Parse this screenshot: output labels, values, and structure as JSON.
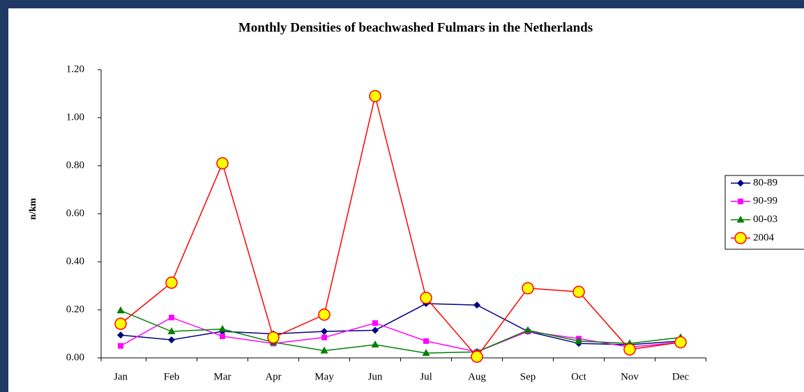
{
  "chart_data": {
    "type": "line",
    "title": "Monthly Densities of beachwashed Fulmars in the Netherlands",
    "y_label": "n/km",
    "categories": [
      "Jan",
      "Feb",
      "Mar",
      "Apr",
      "May",
      "Jun",
      "Jul",
      "Aug",
      "Sep",
      "Oct",
      "Nov",
      "Dec"
    ],
    "series": [
      {
        "name": "80-89",
        "color": "#000080",
        "values": [
          0.095,
          0.075,
          0.11,
          0.1,
          0.11,
          0.115,
          0.226,
          0.22,
          0.11,
          0.06,
          0.055,
          0.07
        ]
      },
      {
        "name": "90-99",
        "color": "#ff00ff",
        "values": [
          0.05,
          0.168,
          0.09,
          0.06,
          0.085,
          0.145,
          0.07,
          0.025,
          0.11,
          0.08,
          0.045,
          0.065
        ]
      },
      {
        "name": "00-03",
        "color": "#008000",
        "values": [
          0.197,
          0.11,
          0.12,
          0.065,
          0.03,
          0.055,
          0.02,
          0.025,
          0.115,
          0.07,
          0.06,
          0.085
        ]
      },
      {
        "name": "2004",
        "color": "#ff0000",
        "values": [
          0.142,
          0.313,
          0.81,
          0.085,
          0.18,
          1.09,
          0.25,
          0.005,
          0.29,
          0.275,
          0.035,
          0.065
        ]
      }
    ],
    "ylim": [
      0,
      1.2
    ],
    "yticks": [
      {
        "value": 0,
        "label": "0.00"
      },
      {
        "value": 0.2,
        "label": "0.20"
      },
      {
        "value": 0.4,
        "label": "0.40"
      },
      {
        "value": 0.6,
        "label": "0.60"
      },
      {
        "value": 0.8,
        "label": "0.80"
      },
      {
        "value": 1.0,
        "label": "1.00"
      },
      {
        "value": 1.2,
        "label": "1.20"
      }
    ],
    "legend": "right"
  }
}
